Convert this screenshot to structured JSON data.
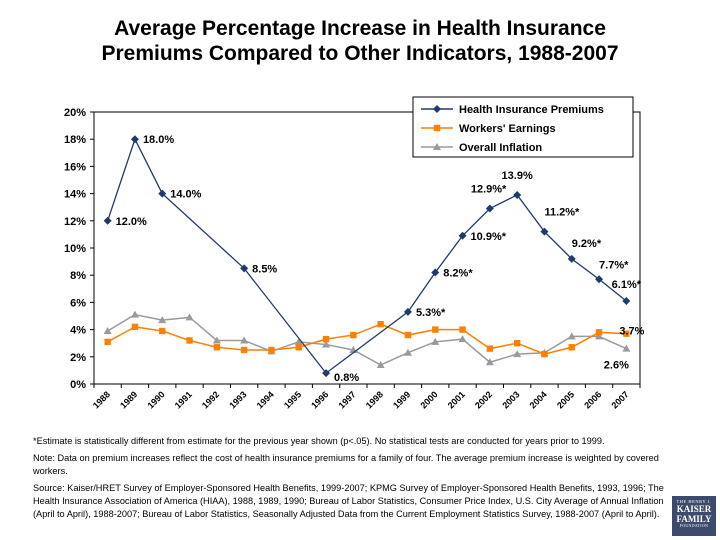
{
  "title_line1": "Average Percentage Increase in Health Insurance",
  "title_line2": "Premiums Compared to Other Indicators, 1988-2007",
  "chart_data": {
    "type": "line",
    "x": [
      "1988",
      "1989",
      "1990",
      "1991",
      "1992",
      "1993",
      "1994",
      "1995",
      "1996",
      "1997",
      "1998",
      "1999",
      "2000",
      "2001",
      "2002",
      "2003",
      "2004",
      "2005",
      "2006",
      "2007"
    ],
    "ylim": [
      0,
      20
    ],
    "yticks": [
      "0%",
      "2%",
      "4%",
      "6%",
      "8%",
      "10%",
      "12%",
      "14%",
      "16%",
      "18%",
      "20%"
    ],
    "legend_position": "top-right",
    "series": [
      {
        "name": "Health Insurance Premiums",
        "color": "#1f3b6e",
        "marker": "diamond",
        "points": [
          {
            "x": "1988",
            "y": 12.0,
            "label": "12.0%"
          },
          {
            "x": "1989",
            "y": 18.0,
            "label": "18.0%"
          },
          {
            "x": "1990",
            "y": 14.0,
            "label": "14.0%"
          },
          {
            "x": "1993",
            "y": 8.5,
            "label": "8.5%"
          },
          {
            "x": "1996",
            "y": 0.8,
            "label": "0.8%"
          },
          {
            "x": "1999",
            "y": 5.3,
            "label": "5.3%*"
          },
          {
            "x": "2000",
            "y": 8.2,
            "label": "8.2%*"
          },
          {
            "x": "2001",
            "y": 10.9,
            "label": "10.9%*"
          },
          {
            "x": "2002",
            "y": 12.9,
            "label": "12.9%*"
          },
          {
            "x": "2003",
            "y": 13.9,
            "label": "13.9%"
          },
          {
            "x": "2004",
            "y": 11.2,
            "label": "11.2%*"
          },
          {
            "x": "2005",
            "y": 9.2,
            "label": "9.2%*"
          },
          {
            "x": "2006",
            "y": 7.7,
            "label": "7.7%*"
          },
          {
            "x": "2007",
            "y": 6.1,
            "label": "6.1%*"
          }
        ]
      },
      {
        "name": "Workers' Earnings",
        "color": "#ff8000",
        "marker": "square",
        "points": [
          {
            "x": "1988",
            "y": 3.1
          },
          {
            "x": "1989",
            "y": 4.2
          },
          {
            "x": "1990",
            "y": 3.9
          },
          {
            "x": "1991",
            "y": 3.2
          },
          {
            "x": "1992",
            "y": 2.7
          },
          {
            "x": "1993",
            "y": 2.5
          },
          {
            "x": "1994",
            "y": 2.5
          },
          {
            "x": "1995",
            "y": 2.7
          },
          {
            "x": "1996",
            "y": 3.3
          },
          {
            "x": "1997",
            "y": 3.6
          },
          {
            "x": "1998",
            "y": 4.4
          },
          {
            "x": "1999",
            "y": 3.6
          },
          {
            "x": "2000",
            "y": 4.0
          },
          {
            "x": "2001",
            "y": 4.0
          },
          {
            "x": "2002",
            "y": 2.6
          },
          {
            "x": "2003",
            "y": 3.0
          },
          {
            "x": "2004",
            "y": 2.2
          },
          {
            "x": "2005",
            "y": 2.7
          },
          {
            "x": "2006",
            "y": 3.8
          },
          {
            "x": "2007",
            "y": 3.7,
            "label": "3.7%"
          }
        ]
      },
      {
        "name": "Overall Inflation",
        "color": "#9a9a9a",
        "marker": "triangle",
        "points": [
          {
            "x": "1988",
            "y": 3.9
          },
          {
            "x": "1989",
            "y": 5.1
          },
          {
            "x": "1990",
            "y": 4.7
          },
          {
            "x": "1991",
            "y": 4.9
          },
          {
            "x": "1992",
            "y": 3.2
          },
          {
            "x": "1993",
            "y": 3.2
          },
          {
            "x": "1994",
            "y": 2.4
          },
          {
            "x": "1995",
            "y": 3.1
          },
          {
            "x": "1996",
            "y": 2.9
          },
          {
            "x": "1997",
            "y": 2.5
          },
          {
            "x": "1998",
            "y": 1.4
          },
          {
            "x": "1999",
            "y": 2.3
          },
          {
            "x": "2000",
            "y": 3.1
          },
          {
            "x": "2001",
            "y": 3.3
          },
          {
            "x": "2002",
            "y": 1.6
          },
          {
            "x": "2003",
            "y": 2.2
          },
          {
            "x": "2004",
            "y": 2.3
          },
          {
            "x": "2005",
            "y": 3.5
          },
          {
            "x": "2006",
            "y": 3.5
          },
          {
            "x": "2007",
            "y": 2.6,
            "label": "2.6%"
          }
        ]
      }
    ]
  },
  "notes": {
    "estimate": "*Estimate is statistically different from estimate for the previous year shown (p<.05).  No statistical tests are conducted for years prior to 1999.",
    "note": "Note:  Data on premium increases reflect the cost of health insurance premiums for a family of four. The average premium increase is weighted by covered workers.",
    "source": "Source:  Kaiser/HRET Survey of Employer-Sponsored Health Benefits, 1999-2007; KPMG Survey of Employer-Sponsored Health Benefits, 1993, 1996; The Health Insurance Association of America (HIAA), 1988, 1989, 1990; Bureau of Labor Statistics, Consumer Price Index, U.S. City Average of Annual Inflation (April to April), 1988-2007; Bureau of Labor Statistics, Seasonally Adjusted Data from the Current Employment Statistics Survey, 1988-2007 (April to April)."
  },
  "logo": {
    "line1": "THE HENRY J.",
    "line2a": "KAISER",
    "line2b": "FAMILY",
    "line3": "FOUNDATION"
  }
}
